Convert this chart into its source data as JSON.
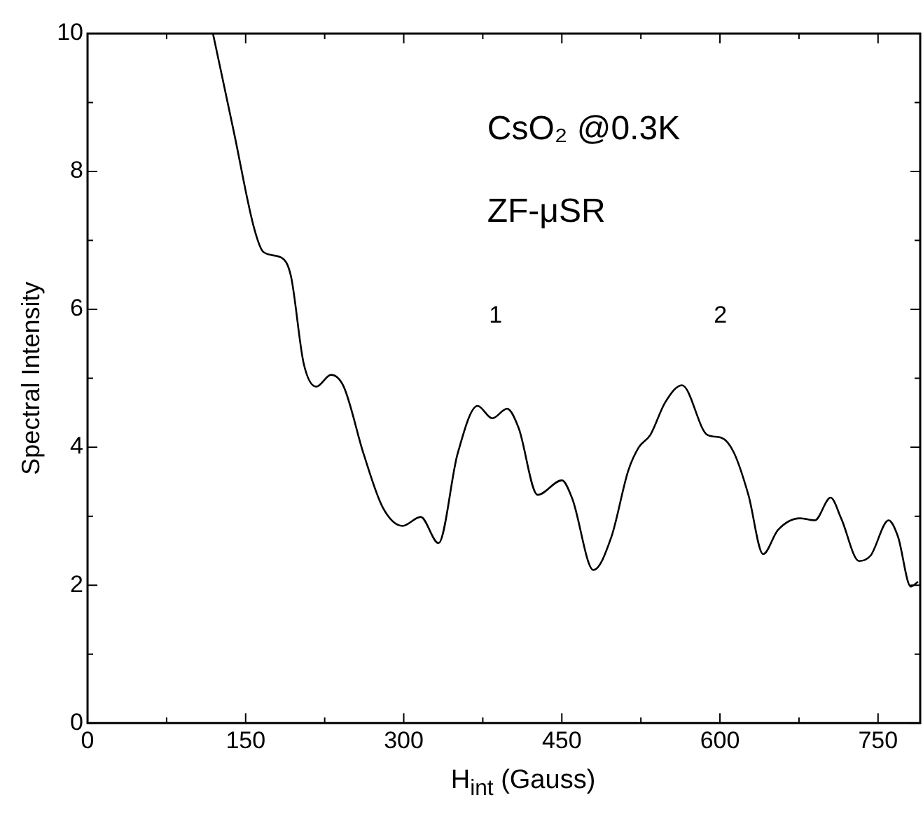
{
  "chart_data": {
    "type": "line",
    "xlabel": "H$_{int}$ (Gauss)",
    "ylabel": "Spectral Intensity",
    "annotations": [
      {
        "text": "CsO₂ @0.3K"
      },
      {
        "text": "ZF-μSR"
      },
      "1",
      "2"
    ],
    "series": [
      {
        "color": "#000000",
        "x": [
          119,
          139,
          158,
          167,
          184,
          193,
          205,
          217,
          231,
          243,
          262,
          280,
          299,
          316,
          333,
          351,
          370,
          384,
          398,
          409,
          427,
          450,
          460,
          480,
          497,
          513,
          523,
          534,
          548,
          564,
          588,
          601,
          613,
          627,
          641,
          655,
          676,
          690,
          705,
          715,
          732,
          743,
          760,
          769,
          781,
          788
        ],
        "values": [
          10,
          8.56,
          7.18,
          6.83,
          6.75,
          6.48,
          5.22,
          4.88,
          5.05,
          4.88,
          3.9,
          3.13,
          2.86,
          2.99,
          2.61,
          3.9,
          4.6,
          4.42,
          4.56,
          4.28,
          3.31,
          3.52,
          3.25,
          2.22,
          2.7,
          3.66,
          4.0,
          4.18,
          4.65,
          4.9,
          4.18,
          4.14,
          3.93,
          3.31,
          2.45,
          2.8,
          2.97,
          2.94,
          3.27,
          2.97,
          2.35,
          2.43,
          2.94,
          2.7,
          1.98,
          2.05
        ]
      }
    ],
    "xlim": [
      0,
      790
    ],
    "ylim": [
      0,
      10
    ],
    "xticks": [
      0,
      {
        "value": 75,
        "label": null
      },
      150,
      {
        "value": 225,
        "label": null
      },
      300,
      {
        "value": 375,
        "label": null
      },
      450,
      {
        "value": 525,
        "label": null
      },
      600,
      {
        "value": 675,
        "label": null
      },
      750
    ],
    "yticks": [
      0,
      {
        "value": 1,
        "label": null
      },
      2,
      {
        "value": 3,
        "label": null
      },
      4,
      {
        "value": 5,
        "label": null
      },
      6,
      {
        "value": 7,
        "label": null
      },
      8,
      {
        "value": 9,
        "label": null
      },
      10
    ],
    "grid": false,
    "legend": false,
    "marker": "none",
    "line_style": "solid"
  }
}
